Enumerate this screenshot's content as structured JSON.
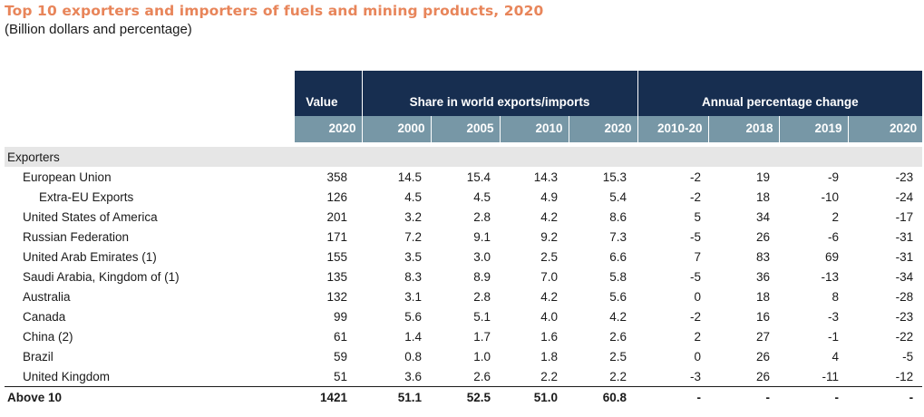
{
  "title": "Top 10 exporters and importers of fuels and mining products, 2020",
  "subtitle": "(Billion dollars and percentage)",
  "header": {
    "value_label": "Value",
    "share_label": "Share in world exports/imports",
    "change_label": "Annual percentage change",
    "years": [
      "2020",
      "2000",
      "2005",
      "2010",
      "2020",
      "2010-20",
      "2018",
      "2019",
      "2020"
    ]
  },
  "section_label": "Exporters",
  "rows": [
    {
      "name": "European Union",
      "values": [
        "358",
        "14.5",
        "15.4",
        "14.3",
        "15.3",
        "-2",
        "19",
        "-9",
        "-23"
      ]
    },
    {
      "name": "Extra-EU Exports",
      "values": [
        "126",
        "4.5",
        "4.5",
        "4.9",
        "5.4",
        "-2",
        "18",
        "-10",
        "-24"
      ]
    },
    {
      "name": "United States of America",
      "values": [
        "201",
        "3.2",
        "2.8",
        "4.2",
        "8.6",
        "5",
        "34",
        "2",
        "-17"
      ]
    },
    {
      "name": "Russian Federation",
      "values": [
        "171",
        "7.2",
        "9.1",
        "9.2",
        "7.3",
        "-5",
        "26",
        "-6",
        "-31"
      ]
    },
    {
      "name": "United Arab Emirates (1)",
      "values": [
        "155",
        "3.5",
        "3.0",
        "2.5",
        "6.6",
        "7",
        "83",
        "69",
        "-31"
      ]
    },
    {
      "name": "Saudi Arabia, Kingdom of (1)",
      "values": [
        "135",
        "8.3",
        "8.9",
        "7.0",
        "5.8",
        "-5",
        "36",
        "-13",
        "-34"
      ]
    },
    {
      "name": "Australia",
      "values": [
        "132",
        "3.1",
        "2.8",
        "4.2",
        "5.6",
        "0",
        "18",
        "8",
        "-28"
      ]
    },
    {
      "name": "Canada",
      "values": [
        "99",
        "5.6",
        "5.1",
        "4.0",
        "4.2",
        "-2",
        "16",
        "-3",
        "-23"
      ]
    },
    {
      "name": "China (2)",
      "values": [
        "61",
        "1.4",
        "1.7",
        "1.6",
        "2.6",
        "2",
        "27",
        "-1",
        "-22"
      ]
    },
    {
      "name": "Brazil",
      "values": [
        "59",
        "0.8",
        "1.0",
        "1.8",
        "2.5",
        "0",
        "26",
        "4",
        "-5"
      ]
    },
    {
      "name": "United Kingdom",
      "values": [
        "51",
        "3.6",
        "2.6",
        "2.2",
        "2.2",
        "-3",
        "26",
        "-11",
        "-12"
      ]
    }
  ],
  "total": {
    "name": "Above 10",
    "values": [
      "1421",
      "51.1",
      "52.5",
      "51.0",
      "60.8",
      "-",
      "-",
      "-",
      "-"
    ]
  },
  "colors": {
    "title": "#e8855a",
    "header_dark": "#172e50",
    "header_light": "#7797a6",
    "section_bg": "#e6e6e6"
  }
}
